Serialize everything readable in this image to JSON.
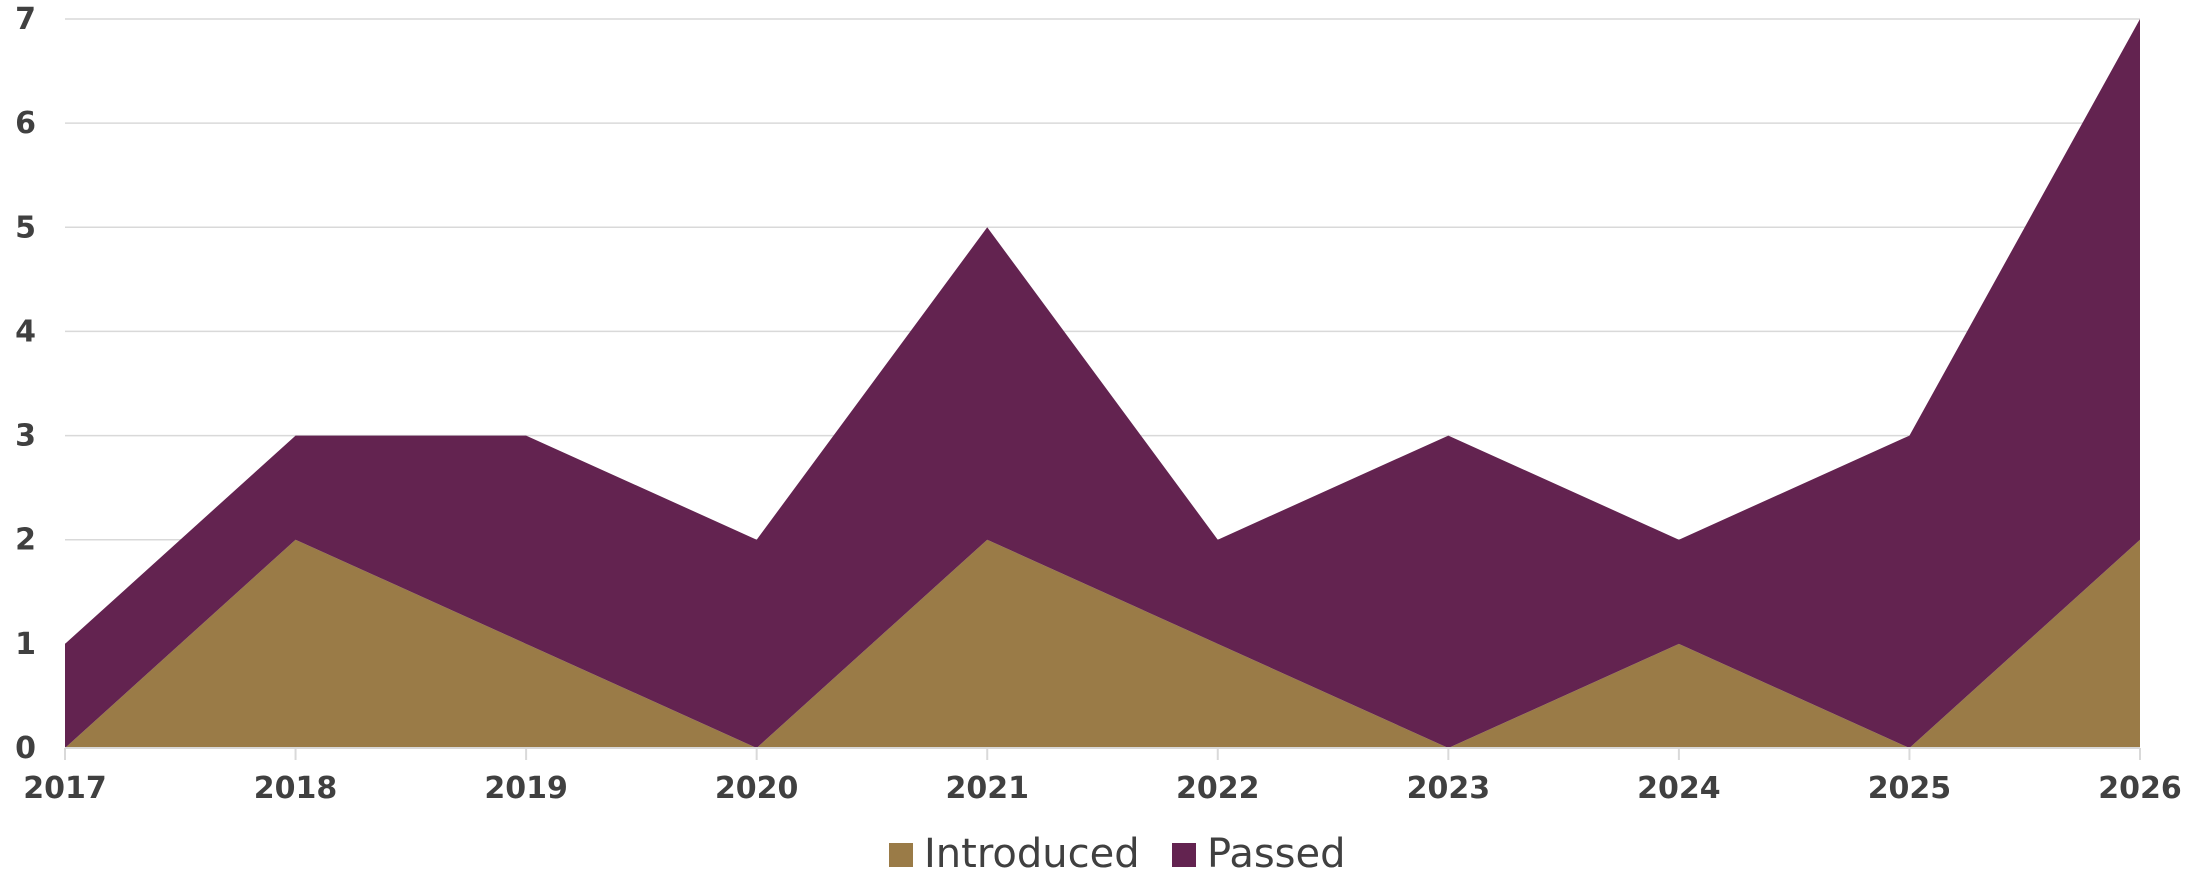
{
  "chart_data": {
    "type": "area",
    "stacked": true,
    "title": "",
    "xlabel": "",
    "ylabel": "",
    "categories": [
      "2017",
      "2018",
      "2019",
      "2020",
      "2021",
      "2022",
      "2023",
      "2024",
      "2025",
      "2026"
    ],
    "series": [
      {
        "name": "Introduced",
        "values": [
          0,
          2,
          1,
          0,
          2,
          1,
          0,
          1,
          0,
          2
        ],
        "color": "#9A7B47"
      },
      {
        "name": "Passed",
        "values": [
          1,
          1,
          2,
          2,
          3,
          1,
          3,
          1,
          3,
          5
        ],
        "color": "#632350"
      }
    ],
    "ylim": [
      0,
      7
    ],
    "yticks": [
      "0",
      "1",
      "2",
      "3",
      "4",
      "5",
      "6",
      "7"
    ],
    "grid": true,
    "legend_position": "bottom"
  }
}
